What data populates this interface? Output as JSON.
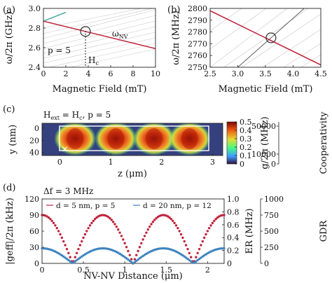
{
  "colors": {
    "nv_line": "#c0243c",
    "teal_line": "#4aa9a6",
    "branch_lines": "#9a9a9a",
    "red_dots": "#c0243c",
    "blue_dots": "#3f84c0",
    "white_box": "#ffffff",
    "colormap": [
      "#30123b",
      "#3e9bfe",
      "#46f884",
      "#e1dd37",
      "#f05b12",
      "#7a0403"
    ]
  },
  "chart_data": [
    {
      "id": "a",
      "panel_label": "(a)",
      "type": "line",
      "xlabel": "Magnetic Field (mT)",
      "ylabel": "ω/2π (GHz)",
      "xlim": [
        0,
        10
      ],
      "ylim": [
        2.4,
        3.0
      ],
      "xticks": [
        "0",
        "2",
        "4",
        "6",
        "8",
        "10"
      ],
      "yticks": [
        "2.4",
        "2.6",
        "2.8",
        "3.0"
      ],
      "series": [
        {
          "name": "ωNV",
          "x": [
            0,
            10
          ],
          "y": [
            2.87,
            2.59
          ]
        },
        {
          "x": [
            0,
            2.0
          ],
          "y": [
            2.87,
            2.96
          ]
        }
      ],
      "annotations": {
        "p": "p = 5",
        "hc": "Hc",
        "crossing": [
          3.75,
          2.765
        ]
      }
    },
    {
      "id": "b",
      "panel_label": "(b)",
      "type": "line",
      "xlabel": "Magnetic Field (mT)",
      "ylabel": "ω/2π (MHz)",
      "xlim": [
        2.5,
        4.5
      ],
      "ylim": [
        2750,
        2800
      ],
      "xticks": [
        "2.5",
        "3.0",
        "3.5",
        "4.0",
        "4.5"
      ],
      "yticks": [
        "2750",
        "2760",
        "2770",
        "2780",
        "2790",
        "2800"
      ],
      "series": [
        {
          "x": [
            2.5,
            4.5
          ],
          "y": [
            2798,
            2752
          ]
        },
        {
          "x": [
            3.0,
            4.2
          ],
          "y": [
            2750,
            2800
          ]
        }
      ],
      "annotations": {
        "crossing": [
          3.6,
          2775
        ]
      }
    },
    {
      "id": "c",
      "panel_label": "(c)",
      "type": "heatmap",
      "title": "Hext = Hc, p = 5",
      "xlabel": "z (μm)",
      "ylabel": "y (nm)",
      "xlim": [
        -0.35,
        3.2
      ],
      "ylim": [
        45,
        -8
      ],
      "xticks": [
        "0",
        "1",
        "2",
        "3"
      ],
      "yticks": [
        "0",
        "20",
        "40"
      ],
      "lobes_z": [
        0.3,
        1.1,
        1.85,
        2.55
      ],
      "marker": {
        "z": 0.1,
        "y": 34,
        "symbol": "×"
      },
      "colorbar_left": {
        "label": "g/2π (MHz)",
        "range": [
          0,
          0.5
        ],
        "ticks": [
          "0",
          "0.1",
          "0.2",
          "0.3",
          "0.4",
          "0.5"
        ]
      },
      "colorbar_right": {
        "label": "Cooperativity",
        "ticks": [
          "0",
          "10000",
          "50000"
        ]
      }
    },
    {
      "id": "d",
      "panel_label": "(d)",
      "type": "scatter",
      "title": "Δf = 3 MHz",
      "xlabel": "NV-NV Distance (μm)",
      "ylabel": "|geff|/2π (kHz)",
      "xlim": [
        0,
        2.2
      ],
      "ylim": [
        0,
        120
      ],
      "xticks": [
        "0",
        "0.5",
        "1",
        "1.5",
        "2"
      ],
      "yticks": [
        "0",
        "30",
        "60",
        "90",
        "120"
      ],
      "right_axis1": {
        "label": "ER (MHz)",
        "range": [
          0,
          1.0
        ],
        "ticks": [
          "0",
          "0.2",
          "0.4",
          "0.6",
          "0.8",
          "1.0"
        ]
      },
      "right_axis2": {
        "label": "GDR",
        "ticks": [
          "0",
          "250",
          "500",
          "750",
          "1000"
        ]
      },
      "series": [
        {
          "name": "d = 5 nm, p = 5",
          "amplitude": 90,
          "zeros": [
            0.37,
            1.1,
            1.84
          ]
        },
        {
          "name": "d = 20 nm, p = 12",
          "amplitude": 28,
          "zeros": [
            0.37,
            1.1,
            1.84
          ]
        }
      ]
    }
  ]
}
